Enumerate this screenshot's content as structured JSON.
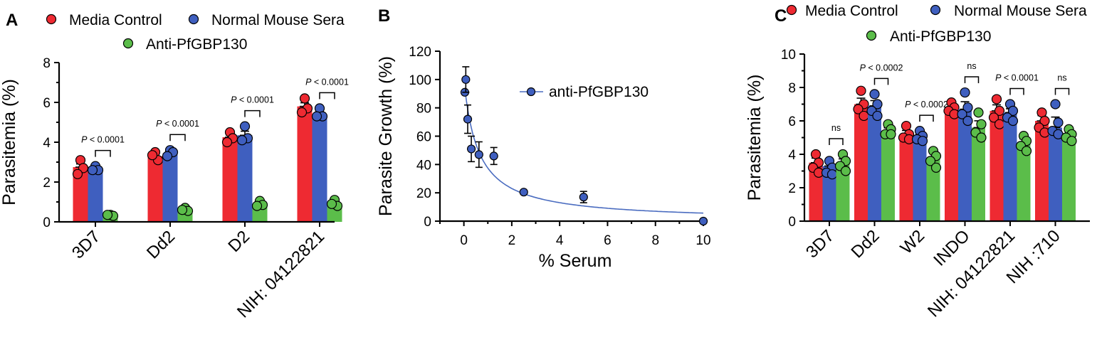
{
  "colors": {
    "media_control": "#ee2a32",
    "normal_mouse_sera": "#3f5fbf",
    "anti_pfgbp130": "#5bbd4a",
    "fit_line": "#4a6cc0"
  },
  "chart_data": [
    {
      "panel": "A",
      "type": "bar",
      "xlabel": "",
      "ylabel": "Parasitemia (%)",
      "ylim": [
        0,
        8
      ],
      "yticks": [
        "0",
        "2",
        "4",
        "6",
        "8"
      ],
      "categories": [
        "3D7",
        "Dd2",
        "D2",
        "NIH: 04122821"
      ],
      "legend": [
        "Media Control",
        "Normal Mouse Sera",
        "Anti-PfGBP130"
      ],
      "series": [
        {
          "name": "Media Control",
          "values": [
            2.75,
            3.3,
            4.25,
            5.8
          ],
          "points": [
            [
              3.1,
              2.7,
              2.4
            ],
            [
              3.5,
              3.1,
              3.35
            ],
            [
              4.5,
              4.2,
              4.0
            ],
            [
              6.2,
              5.7,
              5.5
            ]
          ]
        },
        {
          "name": "Normal Mouse Sera",
          "values": [
            2.65,
            3.45,
            4.35,
            5.4
          ],
          "points": [
            [
              2.8,
              2.6,
              2.6
            ],
            [
              3.6,
              3.5,
              3.3
            ],
            [
              4.8,
              4.2,
              4.1
            ],
            [
              5.7,
              5.3,
              5.3
            ]
          ]
        },
        {
          "name": "Anti-PfGBP130",
          "values": [
            0.35,
            0.6,
            0.9,
            0.95
          ],
          "points": [
            [
              0.35,
              0.3,
              0.35
            ],
            [
              0.7,
              0.55,
              0.6
            ],
            [
              1.05,
              0.85,
              0.8
            ],
            [
              1.1,
              0.8,
              0.9
            ]
          ]
        }
      ],
      "annotations": [
        {
          "p": "P",
          "text": " < 0.0001"
        },
        {
          "p": "P",
          "text": " < 0.0001"
        },
        {
          "p": "P",
          "text": " < 0.0001"
        },
        {
          "p": "P",
          "text": " < 0.0001"
        }
      ]
    },
    {
      "panel": "B",
      "type": "scatter",
      "xlabel": "% Serum",
      "ylabel": "Parasite Growth (%)",
      "xlim": [
        -1,
        10
      ],
      "ylim": [
        0,
        120
      ],
      "xticks": [
        "0",
        "2",
        "4",
        "6",
        "8",
        "10"
      ],
      "yticks": [
        "0",
        "20",
        "40",
        "60",
        "80",
        "100",
        "120"
      ],
      "legend": [
        "anti-PfGBP130"
      ],
      "series": [
        {
          "name": "anti-PfGBP130",
          "x": [
            0.04,
            0.08,
            0.16,
            0.31,
            0.63,
            1.25,
            2.5,
            5.0,
            10.0
          ],
          "y": [
            91,
            100,
            72,
            51,
            47,
            46,
            20.5,
            17,
            0
          ],
          "error": [
            0,
            9,
            10,
            9,
            9,
            6,
            1,
            4,
            0
          ]
        }
      ],
      "fit": {
        "type": "hyperbolic",
        "ic50": 0.6
      }
    },
    {
      "panel": "C",
      "type": "bar",
      "xlabel": "",
      "ylabel": "Parasitemia (%)",
      "ylim": [
        0,
        10
      ],
      "yticks": [
        "0",
        "2",
        "4",
        "6",
        "8",
        "10"
      ],
      "categories": [
        "3D7",
        "Dd2",
        "W2",
        "INDO",
        "NIH: 04122821",
        "NIH :710"
      ],
      "legend": [
        "Media Control",
        "Normal Mouse Sera",
        "Anti-PfGBP130"
      ],
      "series": [
        {
          "name": "Media Control",
          "values": [
            3.5,
            7.0,
            5.2,
            6.8,
            6.6,
            6.0
          ],
          "points": [
            [
              4.0,
              3.5,
              3.2,
              2.9
            ],
            [
              7.8,
              7.0,
              6.7,
              6.3
            ],
            [
              5.7,
              5.2,
              5.0,
              4.9
            ],
            [
              7.1,
              6.8,
              6.6,
              6.4
            ],
            [
              7.3,
              6.6,
              6.2,
              5.8
            ],
            [
              6.5,
              6.0,
              5.6,
              5.3
            ]
          ]
        },
        {
          "name": "Normal Mouse Sera",
          "values": [
            3.3,
            6.9,
            5.1,
            6.7,
            6.5,
            5.6
          ],
          "points": [
            [
              3.6,
              3.2,
              2.9,
              2.8
            ],
            [
              7.6,
              7.0,
              6.6,
              6.3
            ],
            [
              5.4,
              5.1,
              4.9,
              4.8
            ],
            [
              7.7,
              6.8,
              6.4,
              6.0
            ],
            [
              7.0,
              6.6,
              6.2,
              6.0
            ],
            [
              7.0,
              5.9,
              5.4,
              5.2
            ]
          ]
        },
        {
          "name": "Anti-PfGBP130",
          "values": [
            3.5,
            5.4,
            3.8,
            5.6,
            4.7,
            5.2
          ],
          "points": [
            [
              4.0,
              3.6,
              3.3,
              3.0
            ],
            [
              5.8,
              5.5,
              5.2,
              5.2
            ],
            [
              4.2,
              3.9,
              3.6,
              3.2
            ],
            [
              6.5,
              5.8,
              5.3,
              5.0
            ],
            [
              5.1,
              4.8,
              4.5,
              4.2
            ],
            [
              5.5,
              5.2,
              5.0,
              4.8
            ]
          ]
        }
      ],
      "annotations": [
        {
          "p": "",
          "text": "ns"
        },
        {
          "p": "P",
          "text": " < 0.0002"
        },
        {
          "p": "P",
          "text": " < 0.0002"
        },
        {
          "p": "",
          "text": "ns"
        },
        {
          "p": "P",
          "text": " < 0.0001"
        },
        {
          "p": "",
          "text": "ns"
        }
      ]
    }
  ]
}
